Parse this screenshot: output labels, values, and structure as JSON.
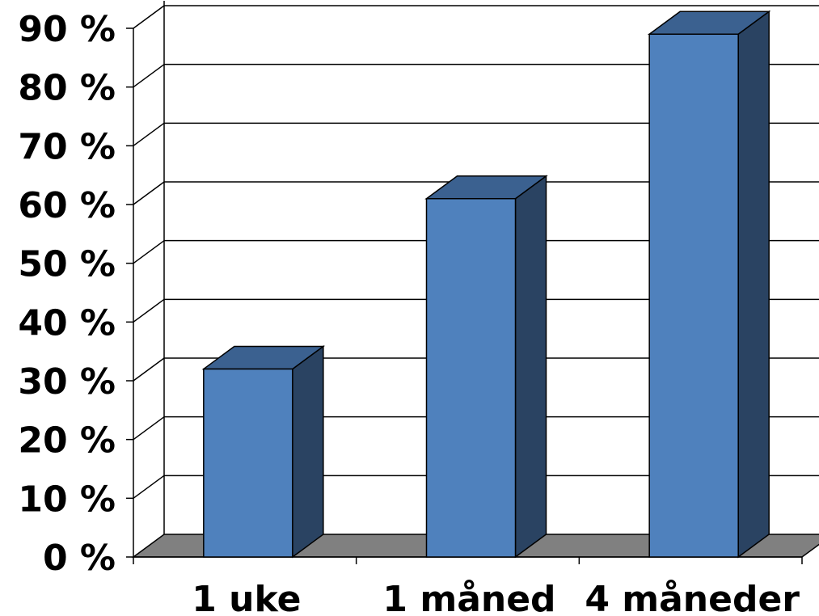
{
  "chart_data": {
    "type": "bar",
    "style": "3d",
    "title": "",
    "xlabel": "",
    "ylabel": "",
    "categories": [
      "1 uke",
      "1 måned",
      "4 måneder"
    ],
    "series": [
      {
        "values": [
          32,
          61,
          89
        ]
      }
    ],
    "ylim": [
      0,
      90
    ],
    "yticks": [
      "0 %",
      "10 %",
      "20 %",
      "30 %",
      "40 %",
      "50 %",
      "60 %",
      "70 %",
      "80 %",
      "90 %"
    ],
    "grid": true,
    "legend": "none",
    "colors": {
      "bar_front": "#4f81bd",
      "bar_top": "#3b6190",
      "bar_side": "#2a4362",
      "floor": "#808080",
      "grid": "#000000"
    }
  }
}
